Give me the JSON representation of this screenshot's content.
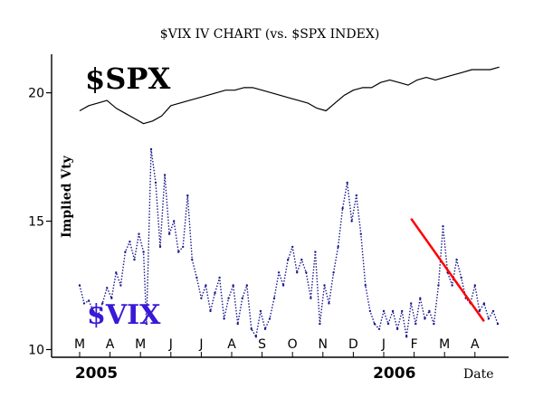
{
  "chart_data": {
    "type": "line",
    "title": "$VIX IV CHART (vs. $SPX INDEX)",
    "ylabel": "Implied Vty",
    "xlabel": "Date",
    "ylim": [
      9.7,
      21.5
    ],
    "yticks": [
      10,
      15,
      20
    ],
    "months": [
      "M",
      "A",
      "M",
      "J",
      "J",
      "A",
      "S",
      "O",
      "N",
      "D",
      "J",
      "F",
      "M",
      "A"
    ],
    "years": [
      {
        "label": "2005",
        "at_month": 0.55
      },
      {
        "label": "2006",
        "at_month": 10.35
      }
    ],
    "grid": false,
    "colors": {
      "spx": "#000000",
      "vix": "#1a1a8c",
      "vix_label": "#3a18d8",
      "trendline": "#ff0000"
    },
    "series": [
      {
        "name": "$SPX",
        "style": "solid",
        "x": [
          0.0,
          0.3,
          0.6,
          0.9,
          1.2,
          1.5,
          1.8,
          2.1,
          2.4,
          2.7,
          3.0,
          3.3,
          3.6,
          3.9,
          4.2,
          4.5,
          4.8,
          5.1,
          5.4,
          5.7,
          6.0,
          6.3,
          6.6,
          6.9,
          7.2,
          7.5,
          7.8,
          8.1,
          8.4,
          8.7,
          9.0,
          9.3,
          9.6,
          9.9,
          10.2,
          10.5,
          10.8,
          11.1,
          11.4,
          11.7,
          12.0,
          12.3,
          12.6,
          12.9,
          13.2,
          13.5,
          13.8
        ],
        "values": [
          19.3,
          19.5,
          19.6,
          19.7,
          19.4,
          19.2,
          19.0,
          18.8,
          18.9,
          19.1,
          19.5,
          19.6,
          19.7,
          19.8,
          19.9,
          20.0,
          20.1,
          20.1,
          20.2,
          20.2,
          20.1,
          20.0,
          19.9,
          19.8,
          19.7,
          19.6,
          19.4,
          19.3,
          19.6,
          19.9,
          20.1,
          20.2,
          20.2,
          20.4,
          20.5,
          20.4,
          20.3,
          20.5,
          20.6,
          20.5,
          20.6,
          20.7,
          20.8,
          20.9,
          20.9,
          20.9,
          21.0
        ]
      },
      {
        "name": "$VIX",
        "style": "dotted",
        "x": [
          0.0,
          0.15,
          0.3,
          0.45,
          0.6,
          0.75,
          0.9,
          1.05,
          1.2,
          1.35,
          1.5,
          1.65,
          1.8,
          1.95,
          2.1,
          2.2,
          2.35,
          2.5,
          2.65,
          2.8,
          2.95,
          3.1,
          3.25,
          3.4,
          3.55,
          3.7,
          3.85,
          4.0,
          4.15,
          4.3,
          4.45,
          4.6,
          4.75,
          4.9,
          5.05,
          5.2,
          5.35,
          5.5,
          5.65,
          5.8,
          5.95,
          6.1,
          6.25,
          6.4,
          6.55,
          6.7,
          6.85,
          7.0,
          7.15,
          7.3,
          7.45,
          7.6,
          7.75,
          7.9,
          8.05,
          8.2,
          8.35,
          8.5,
          8.65,
          8.8,
          8.95,
          9.1,
          9.25,
          9.4,
          9.55,
          9.7,
          9.85,
          10.0,
          10.15,
          10.3,
          10.45,
          10.6,
          10.75,
          10.9,
          11.05,
          11.2,
          11.35,
          11.5,
          11.65,
          11.8,
          11.95,
          12.1,
          12.25,
          12.4,
          12.55,
          12.7,
          12.85,
          13.0,
          13.15,
          13.3,
          13.45,
          13.6,
          13.75
        ],
        "values": [
          12.5,
          11.8,
          11.9,
          11.5,
          11.3,
          11.8,
          12.4,
          12.0,
          13.0,
          12.5,
          13.8,
          14.2,
          13.5,
          14.5,
          13.8,
          11.0,
          17.8,
          16.5,
          14.0,
          16.8,
          14.5,
          15.0,
          13.8,
          14.0,
          16.0,
          13.5,
          12.8,
          12.0,
          12.5,
          11.5,
          12.2,
          12.8,
          11.2,
          12.0,
          12.5,
          11.0,
          12.0,
          12.5,
          10.8,
          10.5,
          11.5,
          10.8,
          11.2,
          12.0,
          13.0,
          12.5,
          13.5,
          14.0,
          13.0,
          13.5,
          13.0,
          12.0,
          13.8,
          11.0,
          12.5,
          11.8,
          13.0,
          14.0,
          15.5,
          16.5,
          15.0,
          16.0,
          14.5,
          12.5,
          11.5,
          11.0,
          10.8,
          11.5,
          11.0,
          11.5,
          10.8,
          11.5,
          10.5,
          11.8,
          11.0,
          12.0,
          11.2,
          11.5,
          11.0,
          12.5,
          14.8,
          13.0,
          12.5,
          13.5,
          12.8,
          12.0,
          11.8,
          12.5,
          11.5,
          11.8,
          11.2,
          11.5,
          11.0
        ]
      }
    ],
    "annotations": [
      {
        "text": "$SPX",
        "color": "#000000"
      },
      {
        "text": "$VIX",
        "color": "#3a18d8"
      }
    ],
    "trendline": {
      "from": [
        10.9,
        15.1
      ],
      "to": [
        13.3,
        11.1
      ]
    }
  }
}
